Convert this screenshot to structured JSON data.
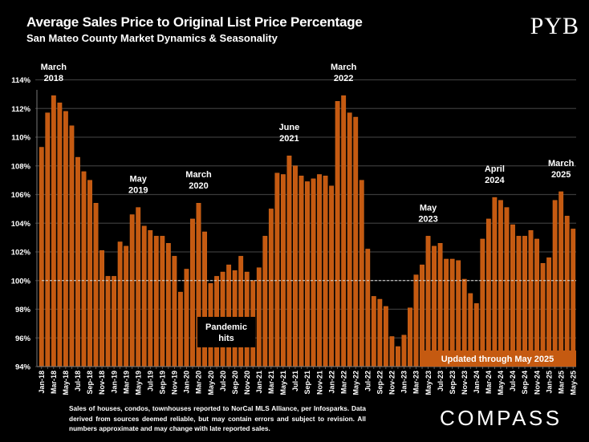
{
  "header": {
    "title": "Average Sales Price to Original List Price Percentage",
    "subtitle": "San Mateo County Market Dynamics & Seasonality",
    "brand_logo": "PYB"
  },
  "footer": {
    "footnote": "Sales of houses, condos, townhouses reported to NorCal MLS Alliance, per Infosparks. Data derived from sources deemed reliable, but may contain errors and subject to revision. All numbers approximate and may change with late reported sales.",
    "company_logo": "COMPASS"
  },
  "colors": {
    "bar": "#c55a11",
    "background": "#000000",
    "grid": "#3a3a3a",
    "reference_line": "#d9d9d9",
    "text": "#ffffff"
  },
  "chart_data": {
    "type": "bar",
    "title": "Average Sales Price to Original List Price Percentage",
    "subtitle": "San Mateo County Market Dynamics & Seasonality",
    "xlabel": "",
    "ylabel": "",
    "ylim": [
      94,
      114
    ],
    "yticks": [
      94,
      96,
      98,
      100,
      102,
      104,
      106,
      108,
      110,
      112,
      114
    ],
    "ytick_suffix": "%",
    "grid": true,
    "reference_line": 100,
    "categories": [
      "Jan-18",
      "Feb-18",
      "Mar-18",
      "Apr-18",
      "May-18",
      "Jun-18",
      "Jul-18",
      "Aug-18",
      "Sep-18",
      "Oct-18",
      "Nov-18",
      "Dec-18",
      "Jan-19",
      "Feb-19",
      "Mar-19",
      "Apr-19",
      "May-19",
      "Jun-19",
      "Jul-19",
      "Aug-19",
      "Sep-19",
      "Oct-19",
      "Nov-19",
      "Dec-19",
      "Jan-20",
      "Feb-20",
      "Mar-20",
      "Apr-20",
      "May-20",
      "Jun-20",
      "Jul-20",
      "Aug-20",
      "Sep-20",
      "Oct-20",
      "Nov-20",
      "Dec-20",
      "Jan-21",
      "Feb-21",
      "Mar-21",
      "Apr-21",
      "May-21",
      "Jun-21",
      "Jul-21",
      "Aug-21",
      "Sep-21",
      "Oct-21",
      "Nov-21",
      "Dec-21",
      "Jan-22",
      "Feb-22",
      "Mar-22",
      "Apr-22",
      "May-22",
      "Jun-22",
      "Jul-22",
      "Aug-22",
      "Sep-22",
      "Oct-22",
      "Nov-22",
      "Dec-22",
      "Jan-23",
      "Feb-23",
      "Mar-23",
      "Apr-23",
      "May-23",
      "Jun-23",
      "Jul-23",
      "Aug-23",
      "Sep-23",
      "Oct-23",
      "Nov-23",
      "Dec-23",
      "Jan-24",
      "Feb-24",
      "Mar-24",
      "Apr-24",
      "May-24",
      "Jun-24",
      "Jul-24",
      "Aug-24",
      "Sep-24",
      "Oct-24",
      "Nov-24",
      "Dec-24",
      "Jan-25",
      "Feb-25",
      "Mar-25",
      "Apr-25",
      "May-25"
    ],
    "x_tick_labels_shown": "every other month starting Jan-18",
    "values": [
      109.3,
      111.7,
      112.9,
      112.4,
      111.8,
      110.8,
      108.6,
      107.6,
      107.0,
      105.4,
      102.1,
      100.3,
      100.3,
      102.7,
      102.4,
      104.6,
      105.1,
      103.8,
      103.5,
      103.1,
      103.1,
      102.6,
      101.7,
      99.2,
      100.8,
      104.3,
      105.4,
      103.4,
      99.8,
      100.3,
      100.6,
      101.1,
      100.7,
      101.7,
      100.6,
      100.0,
      100.9,
      103.1,
      105.0,
      107.5,
      107.4,
      108.7,
      108.0,
      107.3,
      106.9,
      107.1,
      107.4,
      107.3,
      106.6,
      112.5,
      112.9,
      111.7,
      111.4,
      107.0,
      102.2,
      98.9,
      98.7,
      98.2,
      96.1,
      95.4,
      96.2,
      98.1,
      100.4,
      101.1,
      103.1,
      102.4,
      102.6,
      101.5,
      101.5,
      101.4,
      100.1,
      99.1,
      98.4,
      102.9,
      104.3,
      105.8,
      105.6,
      105.1,
      103.9,
      103.1,
      103.1,
      103.5,
      102.9,
      101.2,
      101.6,
      105.6,
      106.2,
      104.5,
      103.6
    ],
    "annotations": [
      {
        "target": "Mar-18",
        "lines": [
          "March",
          "2018"
        ]
      },
      {
        "target": "May-19",
        "lines": [
          "May",
          "2019"
        ]
      },
      {
        "target": "Mar-20",
        "lines": [
          "March",
          "2020"
        ]
      },
      {
        "target": "Jun-21",
        "lines": [
          "June",
          "2021"
        ]
      },
      {
        "target": "Mar-22",
        "lines": [
          "March",
          "2022"
        ]
      },
      {
        "target": "May-23",
        "lines": [
          "May",
          "2023"
        ]
      },
      {
        "target": "Apr-24",
        "lines": [
          "April",
          "2024"
        ]
      },
      {
        "target": "Mar-25",
        "lines": [
          "March",
          "2025"
        ]
      }
    ],
    "callouts": [
      {
        "text_lines": [
          "Pandemic",
          "hits"
        ],
        "near": "Mar-20"
      },
      {
        "text_lines": [
          "Updated through May 2025"
        ],
        "near": "bottom-right"
      }
    ]
  }
}
